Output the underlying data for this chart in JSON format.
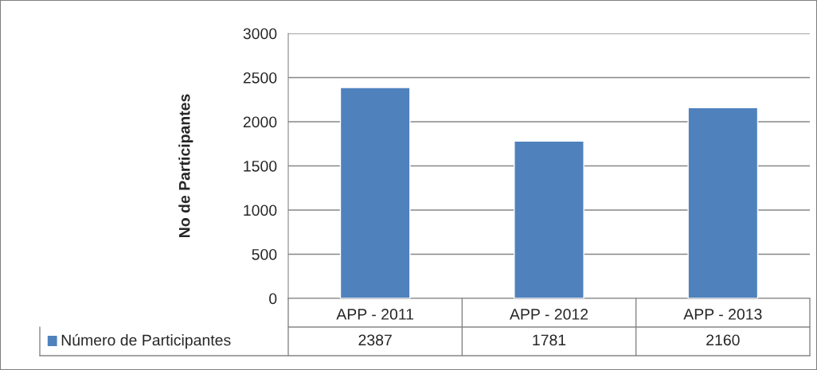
{
  "chart_data": {
    "type": "bar",
    "ylabel": "No de Participantes",
    "categories": [
      "APP - 2011",
      "APP - 2012",
      "APP - 2013"
    ],
    "series": [
      {
        "name": "Número de Participantes",
        "color": "#4f81bd",
        "values": [
          2387,
          1781,
          2160
        ]
      }
    ],
    "ylim": [
      0,
      3000
    ],
    "yticks": [
      0,
      500,
      1000,
      1500,
      2000,
      2500,
      3000
    ],
    "grid": "y",
    "legend": "bottom",
    "data_labels": true
  }
}
